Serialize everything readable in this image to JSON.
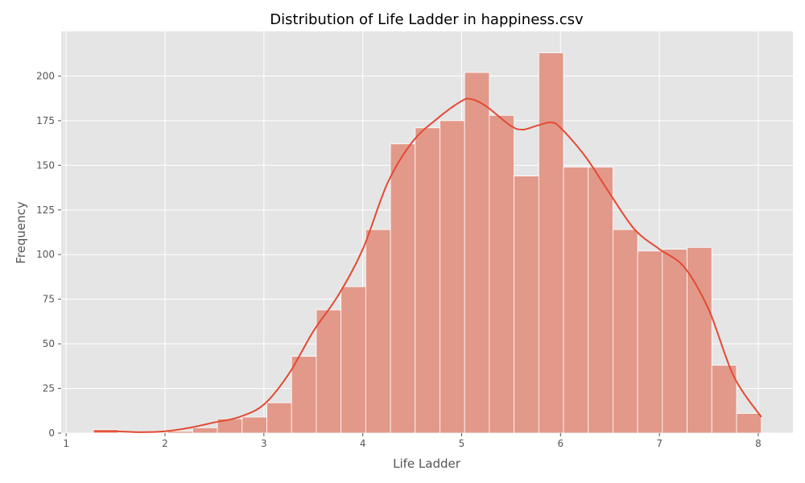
{
  "chart_data": {
    "type": "bar",
    "title": "Distribution of Life Ladder in happiness.csv",
    "xlabel": "Life Ladder",
    "ylabel": "Frequency",
    "xlim": [
      0.95,
      8.35
    ],
    "ylim": [
      0,
      225
    ],
    "xticks": [
      1,
      2,
      3,
      4,
      5,
      6,
      7,
      8
    ],
    "yticks": [
      0,
      25,
      50,
      75,
      100,
      125,
      150,
      175,
      200
    ],
    "grid": true,
    "bin_edges": [
      1.28,
      1.53,
      1.78,
      2.03,
      2.28,
      2.53,
      2.78,
      3.03,
      3.28,
      3.53,
      3.78,
      4.03,
      4.28,
      4.53,
      4.78,
      5.03,
      5.28,
      5.53,
      5.78,
      6.03,
      6.28,
      6.53,
      6.78,
      7.03,
      7.28,
      7.53,
      7.78,
      8.03
    ],
    "values": [
      2,
      0,
      0,
      1,
      3,
      8,
      9,
      17,
      43,
      69,
      82,
      114,
      162,
      171,
      175,
      202,
      178,
      144,
      213,
      149,
      149,
      114,
      102,
      103,
      104,
      38,
      11
    ],
    "kde": {
      "x": [
        1.28,
        1.5,
        1.75,
        2.0,
        2.25,
        2.5,
        2.75,
        3.0,
        3.25,
        3.5,
        3.75,
        4.0,
        4.25,
        4.5,
        4.75,
        5.0,
        5.1,
        5.25,
        5.5,
        5.62,
        5.75,
        5.9,
        6.0,
        6.25,
        6.5,
        6.75,
        7.0,
        7.25,
        7.5,
        7.75,
        8.03
      ],
      "y": [
        1,
        1,
        0.5,
        1,
        3,
        6,
        9,
        16,
        33,
        57,
        77,
        103,
        140,
        163,
        176,
        186,
        187,
        183,
        172,
        170,
        172,
        174,
        171,
        155,
        134,
        114,
        103,
        93,
        69,
        32,
        9
      ]
    },
    "colors": {
      "bar": "#e2998a",
      "bar_edge": "#ffffff",
      "kde": "#e24a33",
      "plot_bg": "#e5e5e5",
      "grid": "#ffffff"
    }
  }
}
